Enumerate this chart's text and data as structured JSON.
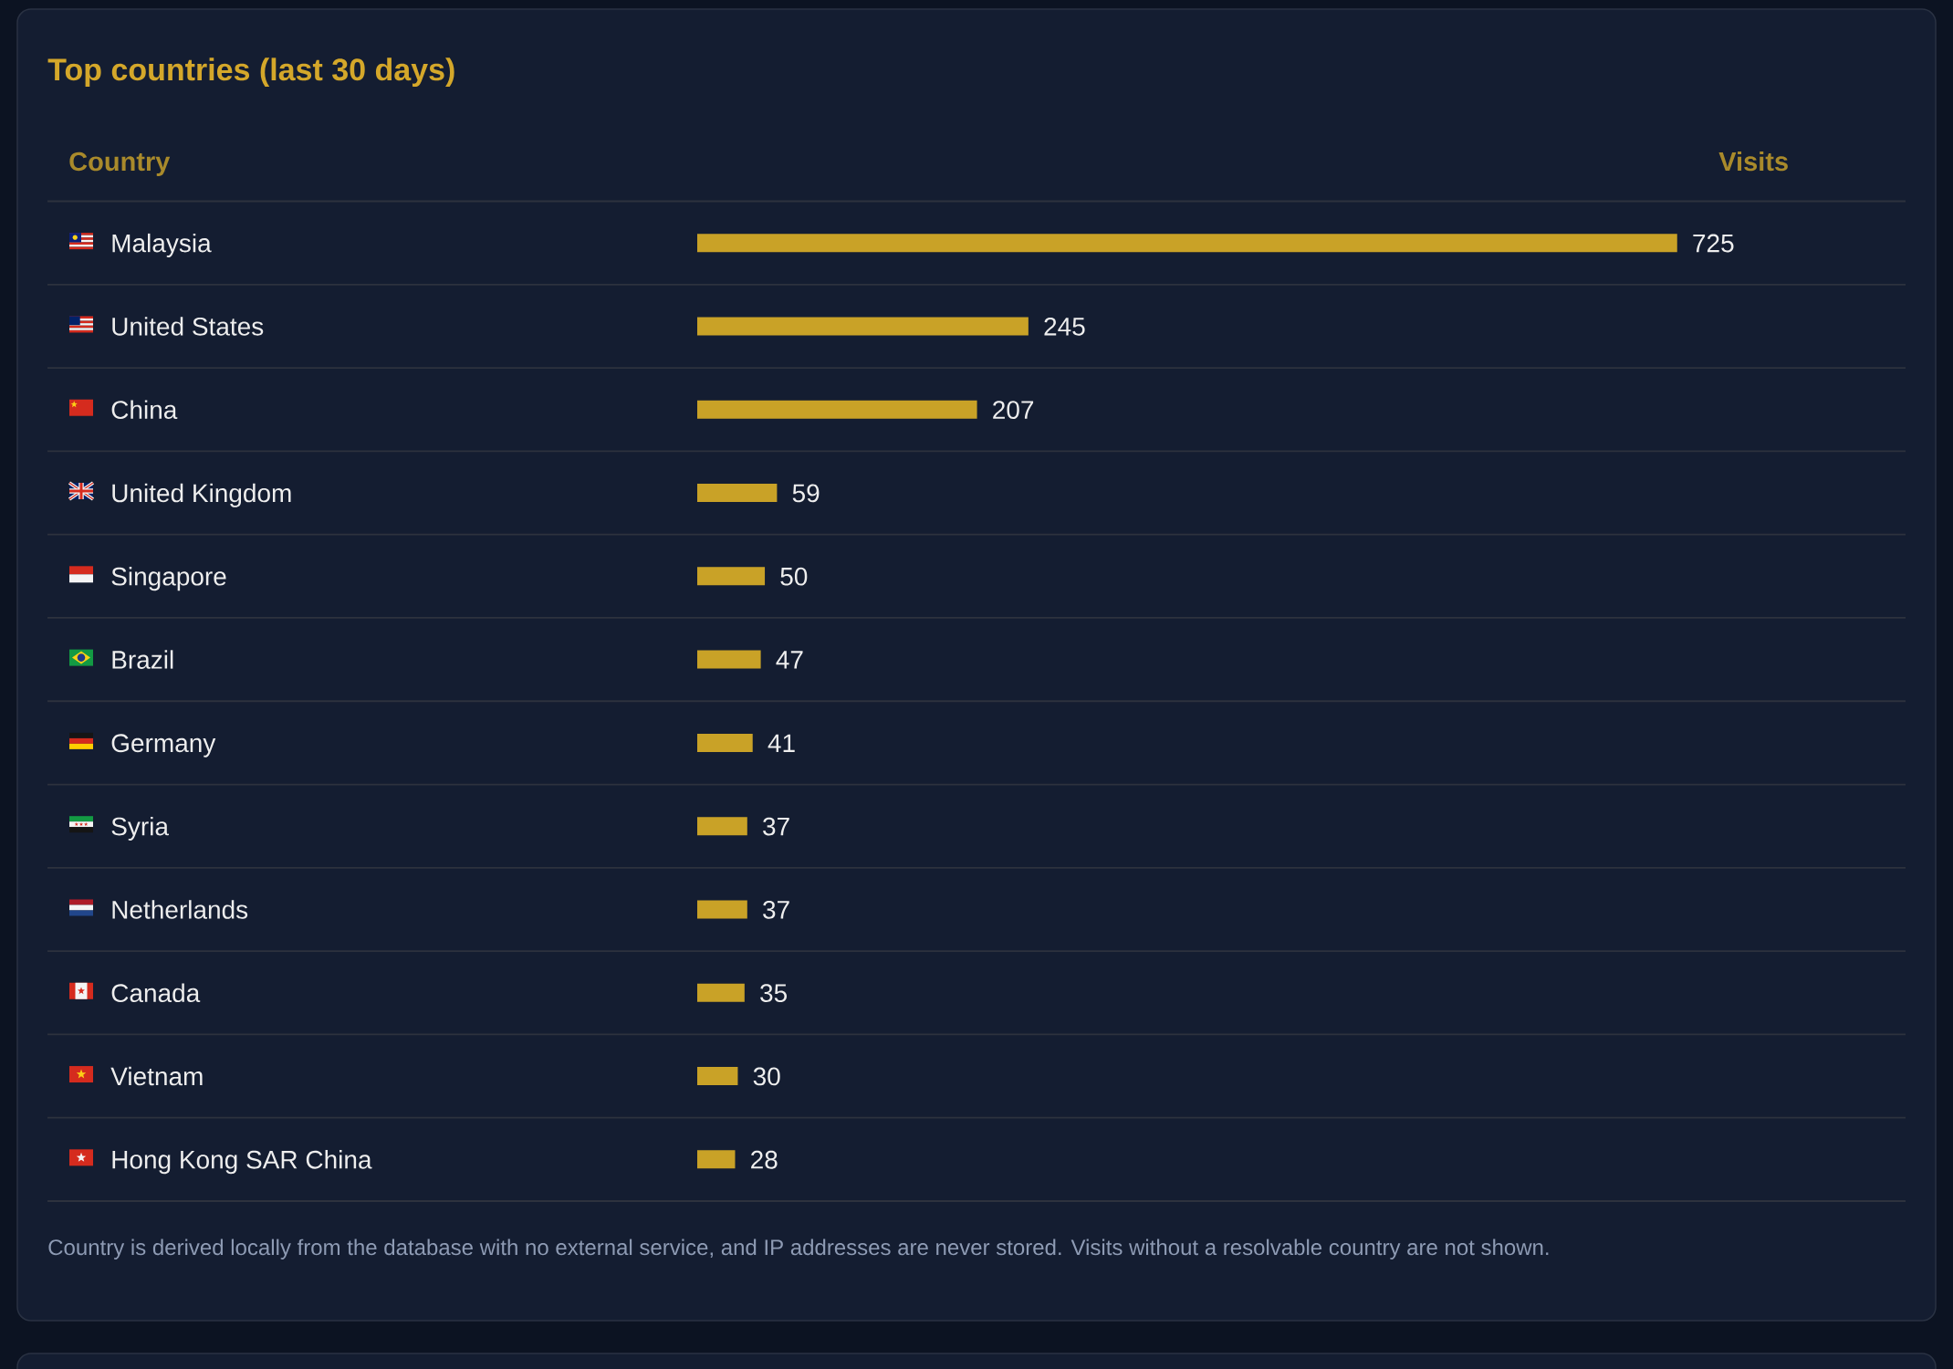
{
  "chart_data": {
    "type": "bar",
    "orientation": "horizontal",
    "title": "Top countries (last 30 days)",
    "ylabel": "Country",
    "xlabel": "Visits",
    "categories": [
      "Malaysia",
      "United States",
      "China",
      "United Kingdom",
      "Singapore",
      "Brazil",
      "Germany",
      "Syria",
      "Netherlands",
      "Canada",
      "Vietnam",
      "Hong Kong SAR China"
    ],
    "values": [
      725,
      245,
      207,
      59,
      50,
      47,
      41,
      37,
      37,
      35,
      30,
      28
    ],
    "color": "#c9a227",
    "xlim": [
      0,
      725
    ],
    "data_labels": true,
    "grid": "y",
    "tick_labels": "y",
    "annotations": [
      "Country is derived locally from the database with no external service, and IP addresses are never stored. Visits without a resolvable country are not shown."
    ]
  }
}
